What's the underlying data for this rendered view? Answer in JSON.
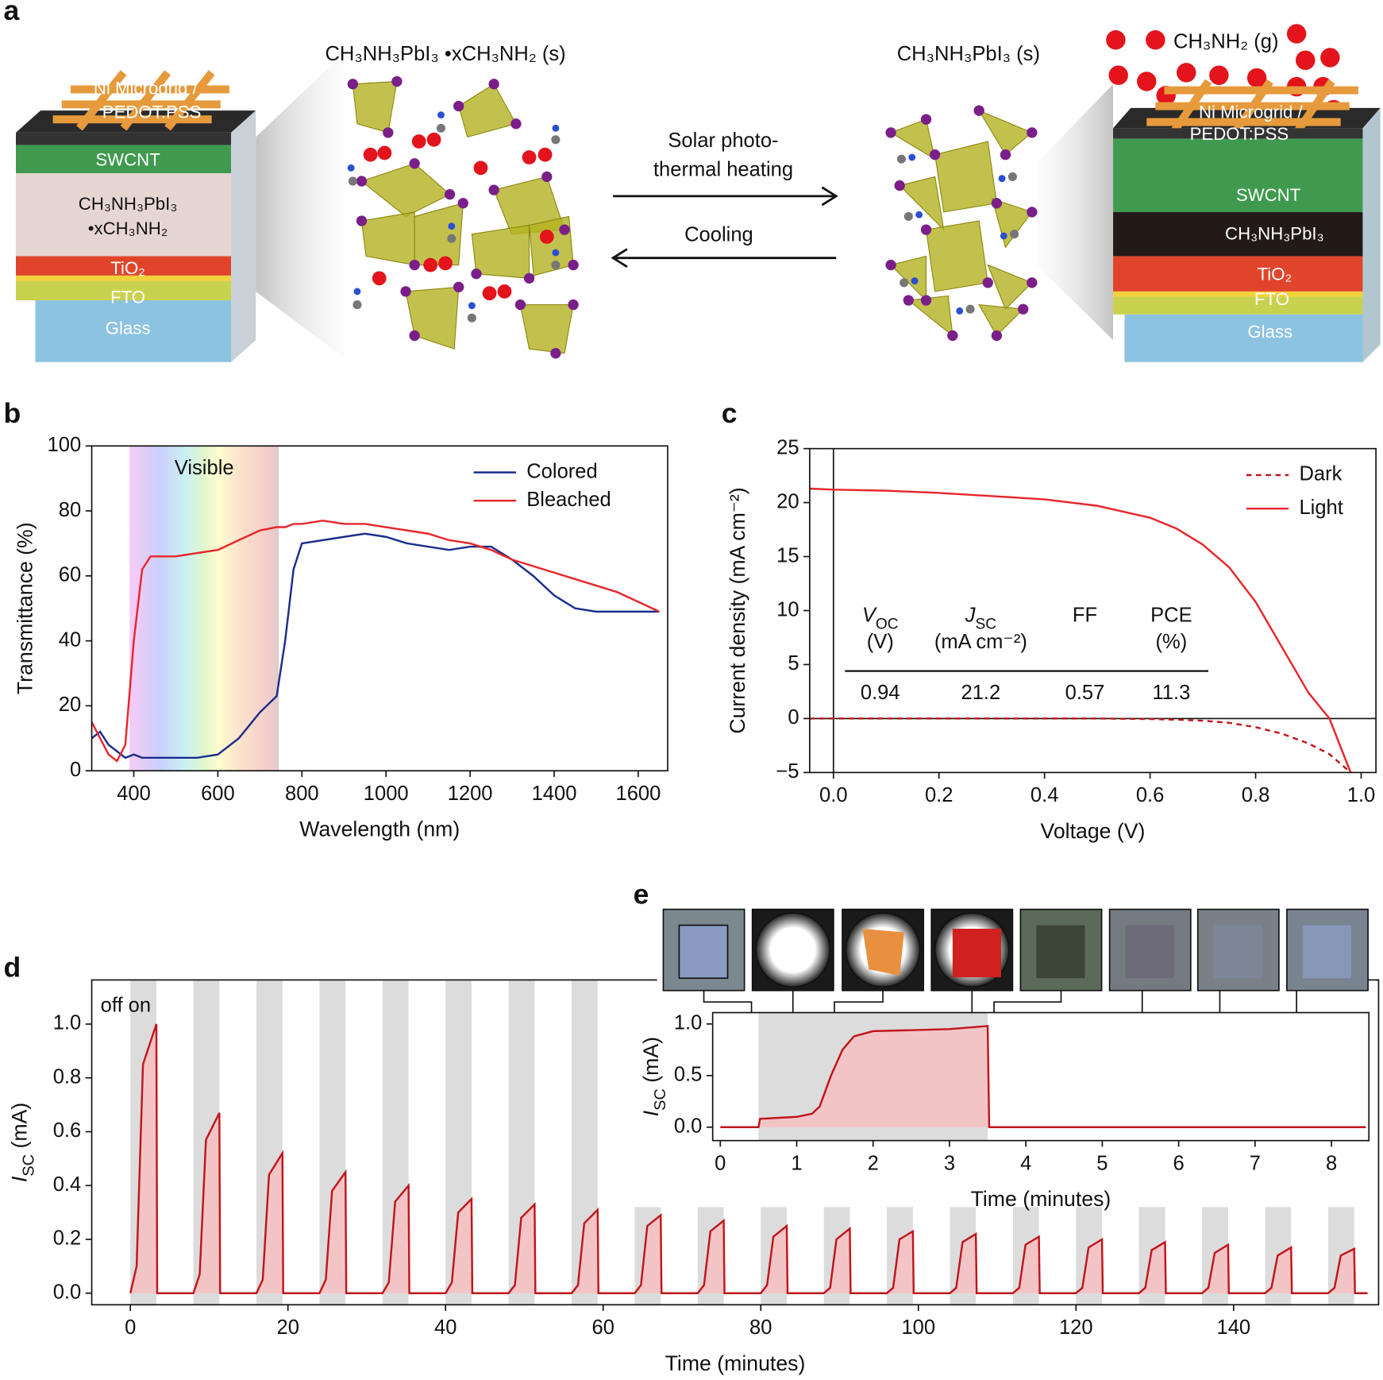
{
  "diagram": {
    "panel_label": "a",
    "left_formula": "CH₃NH₃PbI₃ •xCH₃NH₂ (s)",
    "right_formula": "CH₃NH₃PbI₃ (s)",
    "gas": "CH₃NH₂ (g)",
    "forward": [
      "Solar photo-",
      "thermal heating"
    ],
    "reverse": "Cooling",
    "left_stack": {
      "grid": [
        "Ni Microgrid /",
        "PEDOT:PSS"
      ],
      "swcnt": "SWCNT",
      "absorber": [
        "CH₃NH₃PbI₃",
        "•xCH₃NH₂"
      ],
      "tio2": "TiO₂",
      "fto": "FTO",
      "glass": "Glass"
    },
    "right_stack": {
      "grid": [
        "Ni Microgrid /",
        "PEDOT:PSS"
      ],
      "swcnt": "SWCNT",
      "absorber": "CH₃NH₃PbI₃",
      "tio2": "TiO₂",
      "fto": "FTO",
      "glass": "Glass"
    }
  },
  "chart_data": [
    {
      "type": "line",
      "panel_label": "b",
      "xlabel": "Wavelength (nm)",
      "ylabel": "Transmittance (%)",
      "xlim": [
        300,
        1670
      ],
      "ylim": [
        0,
        100
      ],
      "xticks": [
        400,
        600,
        800,
        1000,
        1200,
        1400,
        1600
      ],
      "yticks": [
        0,
        20,
        40,
        60,
        80,
        100
      ],
      "x": [
        300,
        320,
        340,
        360,
        380,
        400,
        420,
        440,
        460,
        480,
        500,
        550,
        600,
        650,
        700,
        740,
        760,
        780,
        800,
        850,
        900,
        950,
        1000,
        1050,
        1100,
        1150,
        1200,
        1250,
        1300,
        1350,
        1400,
        1450,
        1500,
        1550,
        1600,
        1650
      ],
      "series": [
        {
          "name": "Colored",
          "color": "#1c2f8c",
          "values": [
            10,
            12,
            8,
            6,
            4,
            5,
            4,
            4,
            4,
            4,
            4,
            4,
            5,
            10,
            18,
            23,
            40,
            62,
            70,
            71,
            72,
            73,
            72,
            70,
            69,
            68,
            69,
            69,
            65,
            60,
            54,
            50,
            49,
            49,
            49,
            49
          ]
        },
        {
          "name": "Bleached",
          "color": "#e8262b",
          "values": [
            15,
            10,
            5,
            3,
            8,
            40,
            62,
            66,
            66,
            66,
            66,
            67,
            68,
            71,
            74,
            75,
            75,
            76,
            76,
            77,
            76,
            76,
            75,
            74,
            73,
            71,
            70,
            68,
            65,
            63,
            61,
            59,
            57,
            55,
            52,
            49
          ]
        }
      ],
      "highlight": {
        "label": "Visible",
        "range": [
          390,
          745
        ]
      },
      "legend": "upper right"
    },
    {
      "type": "line",
      "panel_label": "c",
      "xlabel": "Voltage (V)",
      "ylabel": "Current density (mA cm⁻²)",
      "xlim": [
        -0.045,
        1.028
      ],
      "ylim": [
        -5,
        25
      ],
      "xticks": [
        {
          "value": 0,
          "label": "0.0"
        },
        0.2,
        0.4,
        0.6,
        0.8,
        {
          "value": 1,
          "label": "1.0"
        }
      ],
      "yticks": [
        {
          "value": -5,
          "label": "−5"
        },
        0,
        5,
        10,
        15,
        20,
        25
      ],
      "x": [
        -0.045,
        0,
        0.1,
        0.2,
        0.3,
        0.4,
        0.5,
        0.6,
        0.65,
        0.7,
        0.75,
        0.8,
        0.85,
        0.9,
        0.94,
        0.98
      ],
      "series": [
        {
          "name": "Dark",
          "color": "#c0161c",
          "dashed": true,
          "values": [
            0,
            0,
            0,
            0,
            0,
            0,
            0,
            -0.05,
            -0.1,
            -0.2,
            -0.4,
            -0.8,
            -1.4,
            -2.3,
            -3.3,
            -5
          ]
        },
        {
          "name": "Light",
          "color": "#e8262b",
          "values": [
            21.3,
            21.2,
            21.1,
            20.9,
            20.6,
            20.3,
            19.7,
            18.6,
            17.6,
            16.1,
            14.0,
            10.8,
            6.6,
            2.4,
            0,
            -5
          ]
        }
      ],
      "zero_lines": true,
      "legend": "upper right",
      "table": {
        "headers": [
          {
            "symbol": "V",
            "sub": "OC",
            "unit": "(V)"
          },
          {
            "symbol": "J",
            "sub": "SC",
            "unit": "(mA cm⁻²)"
          },
          {
            "symbol": "FF"
          },
          {
            "symbol": "PCE",
            "unit": "(%)"
          }
        ],
        "values": [
          0.94,
          21.2,
          0.57,
          11.3
        ]
      }
    },
    {
      "type": "line",
      "panel_label": "d",
      "xlabel": "Time (minutes)",
      "ylabel": {
        "symbol": "I",
        "sub": "SC",
        "rest": " (mA)"
      },
      "xlim": [
        -4.9,
        158.4
      ],
      "ylim": [
        -0.043,
        1.164
      ],
      "xticks": [
        0,
        20,
        40,
        60,
        80,
        100,
        120,
        140
      ],
      "yticks": [
        {
          "value": 0,
          "label": "0.0"
        },
        0.2,
        0.4,
        0.6,
        0.8,
        {
          "value": 1,
          "label": "1.0"
        }
      ],
      "x": [
        0,
        0.8,
        1.6,
        3.3,
        3.4,
        8,
        8.8,
        9.6,
        11.3,
        11.4,
        16,
        16.8,
        17.6,
        19.3,
        19.4,
        24,
        24.8,
        25.6,
        27.3,
        27.4,
        32,
        32.8,
        33.6,
        35.3,
        35.4,
        40,
        40.8,
        41.6,
        43.3,
        43.4,
        48,
        48.8,
        49.6,
        51.3,
        51.4,
        56,
        56.8,
        57.6,
        59.3,
        59.4,
        64,
        64.8,
        65.6,
        67.3,
        67.4,
        72,
        72.8,
        73.6,
        75.3,
        75.4,
        80,
        80.8,
        81.6,
        83.3,
        83.4,
        88,
        88.8,
        89.6,
        91.3,
        91.4,
        96,
        96.8,
        97.6,
        99.3,
        99.4,
        104,
        104.8,
        105.6,
        107.3,
        107.4,
        112,
        112.8,
        113.6,
        115.3,
        115.4,
        120,
        120.8,
        121.6,
        123.3,
        123.4,
        128,
        128.8,
        129.6,
        131.3,
        131.4,
        136,
        136.8,
        137.6,
        139.3,
        139.4,
        144,
        144.8,
        145.6,
        147.3,
        147.4,
        152,
        152.8,
        153.6,
        155.3,
        155.4,
        157
      ],
      "series": [
        {
          "color": "#c0161c",
          "fill": "#f3c4c6",
          "values": [
            0,
            0.1,
            0.85,
            1.0,
            0,
            0,
            0.07,
            0.57,
            0.67,
            0,
            0,
            0.05,
            0.44,
            0.52,
            0,
            0,
            0.05,
            0.38,
            0.45,
            0,
            0,
            0.04,
            0.34,
            0.4,
            0,
            0,
            0.04,
            0.3,
            0.35,
            0,
            0,
            0.03,
            0.28,
            0.33,
            0,
            0,
            0.03,
            0.26,
            0.31,
            0,
            0,
            0.03,
            0.25,
            0.29,
            0,
            0,
            0.03,
            0.23,
            0.27,
            0,
            0,
            0.03,
            0.21,
            0.25,
            0,
            0,
            0.02,
            0.2,
            0.24,
            0,
            0,
            0.02,
            0.2,
            0.23,
            0,
            0,
            0.02,
            0.19,
            0.22,
            0,
            0,
            0.02,
            0.18,
            0.21,
            0,
            0,
            0.02,
            0.17,
            0.2,
            0,
            0,
            0.02,
            0.16,
            0.19,
            0,
            0,
            0.02,
            0.15,
            0.18,
            0,
            0,
            0.02,
            0.14,
            0.17,
            0,
            0,
            0.02,
            0.14,
            0.165,
            0,
            0
          ]
        }
      ],
      "shaded_spans": [
        [
          0,
          3.3,
          1.164
        ],
        [
          8,
          11.3,
          1.164
        ],
        [
          16,
          19.3,
          1.164
        ],
        [
          24,
          27.3,
          1.164
        ],
        [
          32,
          35.3,
          1.164
        ],
        [
          40,
          43.3,
          1.164
        ],
        [
          48,
          51.3,
          1.164
        ],
        [
          56,
          59.3,
          1.164
        ],
        [
          64,
          67.3,
          0.32
        ],
        [
          72,
          75.3,
          0.32
        ],
        [
          80,
          83.3,
          0.32
        ],
        [
          88,
          91.3,
          0.32
        ],
        [
          96,
          99.3,
          0.32
        ],
        [
          104,
          107.3,
          0.32
        ],
        [
          112,
          115.3,
          0.32
        ],
        [
          120,
          123.3,
          0.32
        ],
        [
          128,
          131.3,
          0.32
        ],
        [
          136,
          139.3,
          0.32
        ],
        [
          144,
          147.3,
          0.32
        ],
        [
          152,
          155.3,
          0.32
        ]
      ],
      "annotation": "off on"
    },
    {
      "type": "line",
      "panel_label": "e",
      "xlabel": "Time (minutes)",
      "ylabel": {
        "symbol": "I",
        "sub": "SC",
        "rest": " (mA)"
      },
      "xlim": [
        -0.1,
        8.49
      ],
      "ylim": [
        -0.13,
        1.11
      ],
      "xticks": [
        0,
        1,
        2,
        3,
        4,
        5,
        6,
        7,
        8
      ],
      "yticks": [
        {
          "value": 0,
          "label": "0.0"
        },
        0.5,
        {
          "value": 1,
          "label": "1.0"
        }
      ],
      "x": [
        0,
        0.5,
        0.52,
        1.0,
        1.2,
        1.3,
        1.45,
        1.6,
        1.75,
        2.0,
        2.5,
        3.0,
        3.5,
        3.52,
        8.45
      ],
      "series": [
        {
          "color": "#c0161c",
          "fill": "#f3c4c6",
          "values": [
            0,
            0,
            0.08,
            0.1,
            0.13,
            0.2,
            0.5,
            0.75,
            0.88,
            0.93,
            0.94,
            0.95,
            0.98,
            0,
            0
          ]
        }
      ],
      "shaded_spans": [
        [
          0.5,
          3.5,
          1.11
        ]
      ]
    }
  ]
}
